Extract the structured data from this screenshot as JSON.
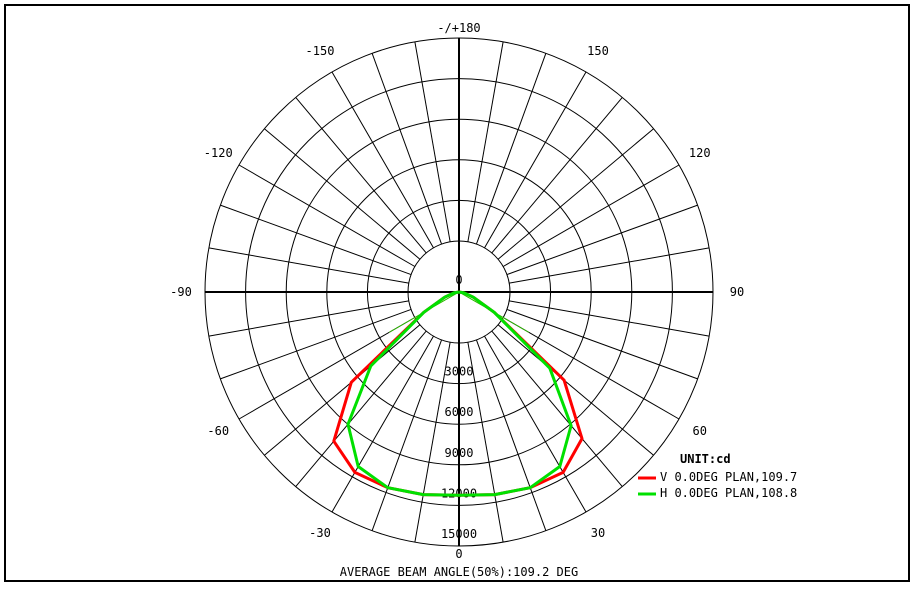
{
  "chart_data": {
    "type": "polar",
    "title": "",
    "footer": "AVERAGE BEAM ANGLE(50%):109.2 DEG",
    "unit_label": "UNIT:cd",
    "radial_range": [
      0,
      15000
    ],
    "radial_ticks": [
      0,
      3000,
      6000,
      9000,
      12000,
      15000
    ],
    "radial_tick_labels": [
      "0",
      "3000",
      "6000",
      "9000",
      "12000",
      "15000"
    ],
    "angle_labels": [
      {
        "angle": 0,
        "label": "0"
      },
      {
        "angle": 30,
        "label": "30"
      },
      {
        "angle": 60,
        "label": "60"
      },
      {
        "angle": 90,
        "label": "90"
      },
      {
        "angle": 120,
        "label": "120"
      },
      {
        "angle": 150,
        "label": "150"
      },
      {
        "angle": 180,
        "label": "-/+180"
      },
      {
        "angle": -30,
        "label": "-30"
      },
      {
        "angle": -60,
        "label": "-60"
      },
      {
        "angle": -90,
        "label": "-90"
      },
      {
        "angle": -120,
        "label": "-120"
      },
      {
        "angle": -150,
        "label": "-150"
      }
    ],
    "grid": true,
    "legend_position": "bottom-right",
    "series": [
      {
        "name": "V 0.0DEG PLAN,109.7",
        "color": "#ff0000",
        "angles": [
          -90,
          -80,
          -70,
          -60,
          -50,
          -40,
          -30,
          -20,
          -10,
          0,
          10,
          20,
          30,
          40,
          50,
          60,
          70,
          80,
          90
        ],
        "values": [
          0,
          300,
          900,
          2400,
          8300,
          11500,
          12300,
          12300,
          12150,
          12000,
          12150,
          12300,
          12300,
          11300,
          8100,
          2400,
          900,
          300,
          0
        ]
      },
      {
        "name": "H 0.0DEG PLAN,108.8",
        "color": "#00e000",
        "angles": [
          -90,
          -80,
          -70,
          -60,
          -50,
          -40,
          -30,
          -20,
          -10,
          0,
          10,
          20,
          30,
          40,
          50,
          60,
          70,
          80,
          90
        ],
        "values": [
          0,
          300,
          900,
          2400,
          6800,
          10200,
          11900,
          12300,
          12150,
          12000,
          12150,
          12300,
          11900,
          10300,
          7000,
          2400,
          900,
          300,
          0
        ]
      }
    ]
  }
}
